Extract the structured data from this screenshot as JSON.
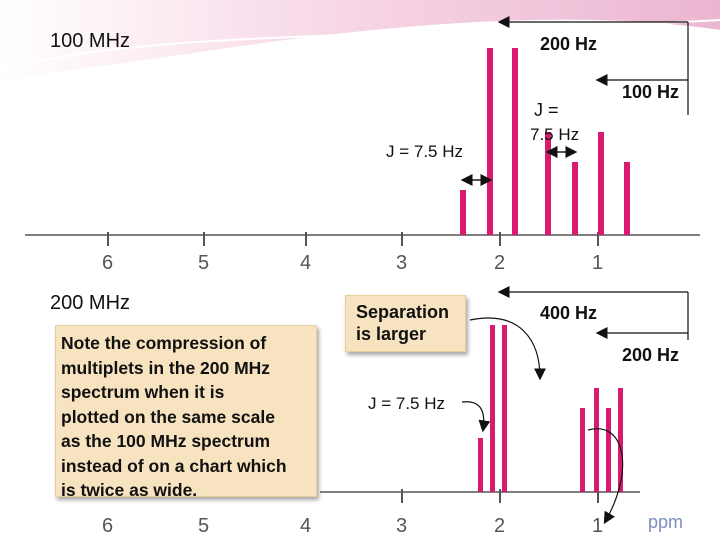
{
  "top_panel": {
    "field_label": "100 MHz",
    "width_label": "200 Hz",
    "width_label_right": "100 Hz",
    "j_label_left": "J = 7.5 Hz",
    "j_label_right_line1": "J =",
    "j_label_right_line2": "7.5 Hz",
    "ticks": [
      "6",
      "5",
      "4",
      "3",
      "2",
      "1"
    ]
  },
  "bottom_panel": {
    "field_label": "200 MHz",
    "width_label": "400 Hz",
    "width_label_right": "200 Hz",
    "j_label": "J = 7.5 Hz",
    "ticks": [
      "6",
      "5",
      "4",
      "3",
      "2",
      "1"
    ],
    "unit": "ppm"
  },
  "note_box": {
    "text": "Note the compression of\nmultiplets in the 200 MHz\nspectrum when it is\nplotted on the same scale\nas the 100 MHz spectrum\ninstead of on a chart which\nis twice as wide."
  },
  "separation_box": {
    "text": "Separation\nis larger"
  },
  "colors": {
    "peak": "#d81b6e",
    "axis": "#555555",
    "box": "#f7e3bf",
    "banner": "#f2c8de"
  }
}
